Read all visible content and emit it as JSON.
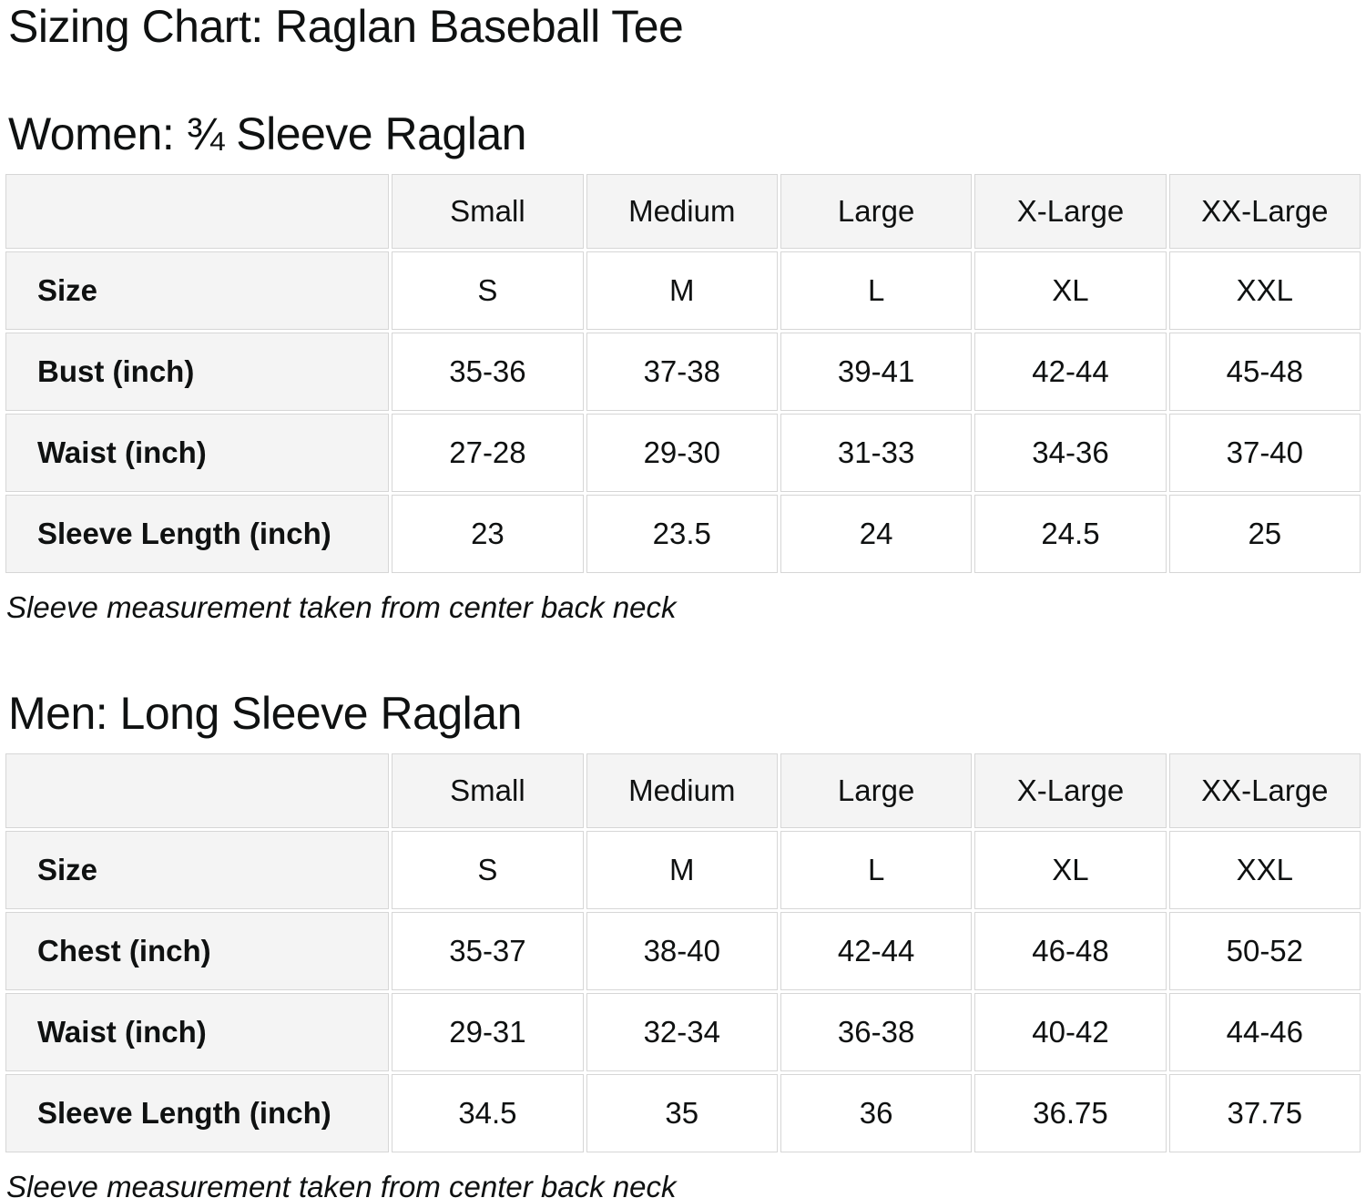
{
  "page": {
    "title": "Sizing Chart: Raglan Baseball Tee"
  },
  "colors": {
    "header_cell_bg": "#f4f4f4",
    "cell_border": "#d6d6d6",
    "text": "#0f1111",
    "background": "#ffffff"
  },
  "sections": [
    {
      "heading": "Women: ¾ Sleeve Raglan",
      "note": "Sleeve measurement taken from center back neck",
      "table": {
        "columns": [
          "",
          "Small",
          "Medium",
          "Large",
          "X-Large",
          "XX-Large"
        ],
        "rows": [
          {
            "label": "Size",
            "values": [
              "S",
              "M",
              "L",
              "XL",
              "XXL"
            ]
          },
          {
            "label": "Bust (inch)",
            "values": [
              "35-36",
              "37-38",
              "39-41",
              "42-44",
              "45-48"
            ]
          },
          {
            "label": "Waist (inch)",
            "values": [
              "27-28",
              "29-30",
              "31-33",
              "34-36",
              "37-40"
            ]
          },
          {
            "label": "Sleeve Length (inch)",
            "values": [
              "23",
              "23.5",
              "24",
              "24.5",
              "25"
            ]
          }
        ]
      }
    },
    {
      "heading": "Men: Long Sleeve Raglan",
      "note": "Sleeve measurement taken from center back neck",
      "table": {
        "columns": [
          "",
          "Small",
          "Medium",
          "Large",
          "X-Large",
          "XX-Large"
        ],
        "rows": [
          {
            "label": "Size",
            "values": [
              "S",
              "M",
              "L",
              "XL",
              "XXL"
            ]
          },
          {
            "label": "Chest (inch)",
            "values": [
              "35-37",
              "38-40",
              "42-44",
              "46-48",
              "50-52"
            ]
          },
          {
            "label": "Waist (inch)",
            "values": [
              "29-31",
              "32-34",
              "36-38",
              "40-42",
              "44-46"
            ]
          },
          {
            "label": "Sleeve Length (inch)",
            "values": [
              "34.5",
              "35",
              "36",
              "36.75",
              "37.75"
            ]
          }
        ]
      }
    }
  ],
  "chart_data": [
    {
      "type": "table",
      "title": "Women: ¾ Sleeve Raglan",
      "columns": [
        "Small",
        "Medium",
        "Large",
        "X-Large",
        "XX-Large"
      ],
      "rows": [
        {
          "label": "Size",
          "values": [
            "S",
            "M",
            "L",
            "XL",
            "XXL"
          ]
        },
        {
          "label": "Bust (inch)",
          "values": [
            "35-36",
            "37-38",
            "39-41",
            "42-44",
            "45-48"
          ]
        },
        {
          "label": "Waist (inch)",
          "values": [
            "27-28",
            "29-30",
            "31-33",
            "34-36",
            "37-40"
          ]
        },
        {
          "label": "Sleeve Length (inch)",
          "values": [
            23,
            23.5,
            24,
            24.5,
            25
          ]
        }
      ],
      "footnote": "Sleeve measurement taken from center back neck"
    },
    {
      "type": "table",
      "title": "Men: Long Sleeve Raglan",
      "columns": [
        "Small",
        "Medium",
        "Large",
        "X-Large",
        "XX-Large"
      ],
      "rows": [
        {
          "label": "Size",
          "values": [
            "S",
            "M",
            "L",
            "XL",
            "XXL"
          ]
        },
        {
          "label": "Chest (inch)",
          "values": [
            "35-37",
            "38-40",
            "42-44",
            "46-48",
            "50-52"
          ]
        },
        {
          "label": "Waist (inch)",
          "values": [
            "29-31",
            "32-34",
            "36-38",
            "40-42",
            "44-46"
          ]
        },
        {
          "label": "Sleeve Length (inch)",
          "values": [
            34.5,
            35,
            36,
            36.75,
            37.75
          ]
        }
      ],
      "footnote": "Sleeve measurement taken from center back neck"
    }
  ]
}
